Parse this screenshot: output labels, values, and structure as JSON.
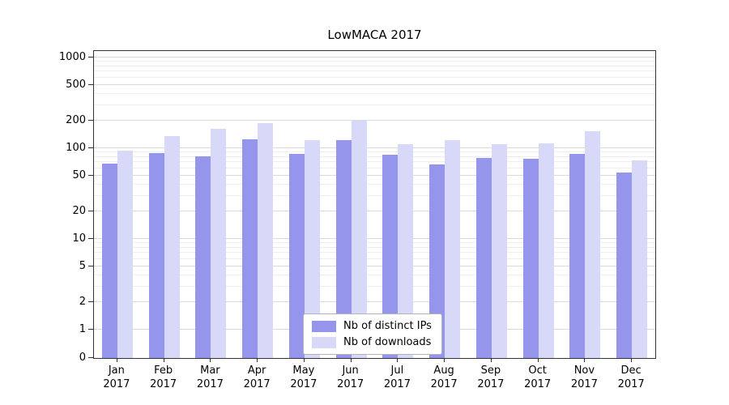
{
  "chart_data": {
    "type": "bar",
    "title": "LowMACA 2017",
    "categories": [
      "Jan",
      "Feb",
      "Mar",
      "Apr",
      "May",
      "Jun",
      "Jul",
      "Aug",
      "Sep",
      "Oct",
      "Nov",
      "Dec"
    ],
    "year": "2017",
    "series": [
      {
        "name": "Nb of distinct IPs",
        "color": "#9595ec",
        "values": [
          68,
          88,
          82,
          125,
          86,
          122,
          84,
          66,
          78,
          76,
          86,
          54
        ]
      },
      {
        "name": "Nb of downloads",
        "color": "#d8d8f8",
        "values": [
          95,
          135,
          165,
          190,
          122,
          205,
          112,
          122,
          110,
          114,
          155,
          74
        ]
      }
    ],
    "y_scale": "log",
    "y_ticks": [
      1000,
      500,
      200,
      100,
      50,
      20,
      10,
      5,
      2,
      1,
      0
    ],
    "ylim": [
      0,
      1000
    ],
    "grid": true,
    "legend_position": "bottom-center"
  }
}
